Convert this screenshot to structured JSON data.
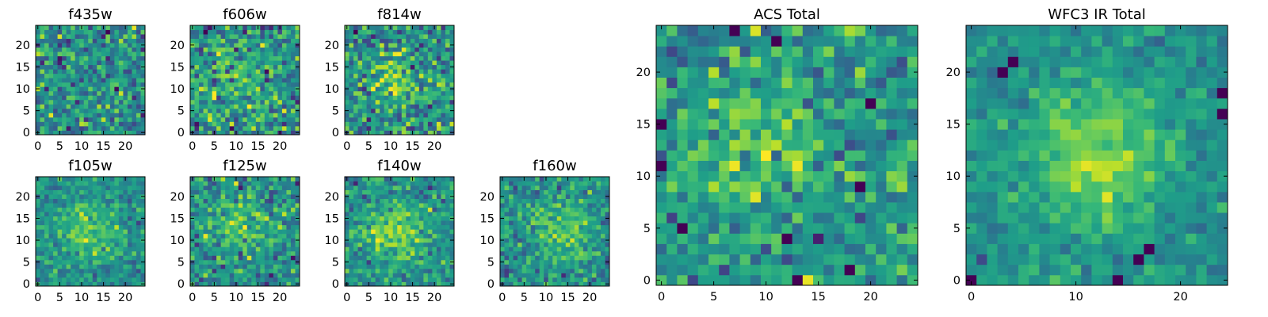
{
  "figure": {
    "colormap": "viridis",
    "color_range": [
      -2.5,
      2.5
    ]
  },
  "chart_data": [
    {
      "type": "heatmap",
      "title": "f435w",
      "grid": false,
      "xlim": [
        -0.5,
        24.5
      ],
      "ylim": [
        -0.5,
        24.5
      ],
      "xticks": [
        "0",
        "5",
        "10",
        "15",
        "20"
      ],
      "yticks": [
        "0",
        "5",
        "10",
        "15",
        "20"
      ],
      "shape": [
        25,
        25
      ],
      "noise_seed": 11,
      "noise_sd": 0.85,
      "signal": []
    },
    {
      "type": "heatmap",
      "title": "f606w",
      "grid": false,
      "xlim": [
        -0.5,
        24.5
      ],
      "ylim": [
        -0.5,
        24.5
      ],
      "xticks": [
        "0",
        "5",
        "10",
        "15",
        "20"
      ],
      "yticks": [
        "0",
        "5",
        "10",
        "15",
        "20"
      ],
      "shape": [
        25,
        25
      ],
      "noise_seed": 23,
      "noise_sd": 0.9,
      "signal": [
        {
          "center": [
            10,
            13
          ],
          "amp": 0.8,
          "sigma": 5
        }
      ]
    },
    {
      "type": "heatmap",
      "title": "f814w",
      "grid": false,
      "xlim": [
        -0.5,
        24.5
      ],
      "ylim": [
        -0.5,
        24.5
      ],
      "xticks": [
        "0",
        "5",
        "10",
        "15",
        "20"
      ],
      "yticks": [
        "0",
        "5",
        "10",
        "15",
        "20"
      ],
      "shape": [
        25,
        25
      ],
      "noise_seed": 37,
      "noise_sd": 0.9,
      "signal": [
        {
          "center": [
            11,
            12
          ],
          "amp": 1.0,
          "sigma": 5
        }
      ]
    },
    {
      "type": "heatmap",
      "title": "f105w",
      "grid": false,
      "xlim": [
        -0.5,
        24.5
      ],
      "ylim": [
        -0.5,
        24.5
      ],
      "xticks": [
        "0",
        "5",
        "10",
        "15",
        "20"
      ],
      "yticks": [
        "0",
        "5",
        "10",
        "15",
        "20"
      ],
      "shape": [
        25,
        25
      ],
      "noise_seed": 41,
      "noise_sd": 0.55,
      "signal": [
        {
          "center": [
            12,
            12
          ],
          "amp": 1.3,
          "sigma": 4.5
        }
      ]
    },
    {
      "type": "heatmap",
      "title": "f125w",
      "grid": false,
      "xlim": [
        -0.5,
        24.5
      ],
      "ylim": [
        -0.5,
        24.5
      ],
      "xticks": [
        "0",
        "5",
        "10",
        "15",
        "20"
      ],
      "yticks": [
        "0",
        "5",
        "10",
        "15",
        "20"
      ],
      "shape": [
        25,
        25
      ],
      "noise_seed": 53,
      "noise_sd": 0.8,
      "signal": [
        {
          "center": [
            11,
            14
          ],
          "amp": 1.1,
          "sigma": 4.5
        }
      ]
    },
    {
      "type": "heatmap",
      "title": "f140w",
      "grid": false,
      "xlim": [
        -0.5,
        24.5
      ],
      "ylim": [
        -0.5,
        24.5
      ],
      "xticks": [
        "0",
        "5",
        "10",
        "15",
        "20"
      ],
      "yticks": [
        "0",
        "5",
        "10",
        "15",
        "20"
      ],
      "shape": [
        25,
        25
      ],
      "noise_seed": 67,
      "noise_sd": 0.6,
      "signal": [
        {
          "center": [
            11,
            12
          ],
          "amp": 1.4,
          "sigma": 4.5
        }
      ]
    },
    {
      "type": "heatmap",
      "title": "f160w",
      "grid": false,
      "xlim": [
        -0.5,
        24.5
      ],
      "ylim": [
        -0.5,
        24.5
      ],
      "xticks": [
        "0",
        "5",
        "10",
        "15",
        "20"
      ],
      "yticks": [
        "0",
        "5",
        "10",
        "15",
        "20"
      ],
      "shape": [
        25,
        25
      ],
      "noise_seed": 79,
      "noise_sd": 0.65,
      "signal": [
        {
          "center": [
            13,
            12
          ],
          "amp": 1.3,
          "sigma": 4.5
        }
      ]
    },
    {
      "type": "heatmap",
      "title": "ACS Total",
      "grid": false,
      "xlim": [
        -0.5,
        24.5
      ],
      "ylim": [
        -0.5,
        24.5
      ],
      "xticks": [
        "0",
        "5",
        "10",
        "15",
        "20"
      ],
      "yticks": [
        "0",
        "5",
        "10",
        "15",
        "20"
      ],
      "shape": [
        25,
        25
      ],
      "noise_seed": 97,
      "noise_sd": 0.75,
      "signal": [
        {
          "center": [
            9,
            13
          ],
          "amp": 1.0,
          "sigma": 5.5
        }
      ],
      "dark_cells": [
        [
          7,
          24
        ],
        [
          11,
          23
        ],
        [
          0,
          15
        ],
        [
          0,
          11
        ],
        [
          2,
          5
        ],
        [
          12,
          4
        ],
        [
          13,
          0
        ],
        [
          18,
          1
        ],
        [
          19,
          9
        ],
        [
          20,
          17
        ]
      ]
    },
    {
      "type": "heatmap",
      "title": "WFC3 IR Total",
      "grid": false,
      "xlim": [
        -0.5,
        24.5
      ],
      "ylim": [
        -0.5,
        24.5
      ],
      "xticks": [
        "0",
        "10",
        "20"
      ],
      "yticks": [
        "0",
        "5",
        "10",
        "15",
        "20"
      ],
      "shape": [
        25,
        25
      ],
      "noise_seed": 113,
      "noise_sd": 0.4,
      "signal": [
        {
          "center": [
            12,
            12
          ],
          "amp": 1.8,
          "sigma": 4.5
        }
      ],
      "dark_cells": [
        [
          3,
          20
        ],
        [
          4,
          21
        ],
        [
          0,
          0
        ],
        [
          14,
          0
        ],
        [
          17,
          3
        ],
        [
          16,
          2
        ],
        [
          24,
          16
        ],
        [
          24,
          18
        ]
      ]
    }
  ]
}
